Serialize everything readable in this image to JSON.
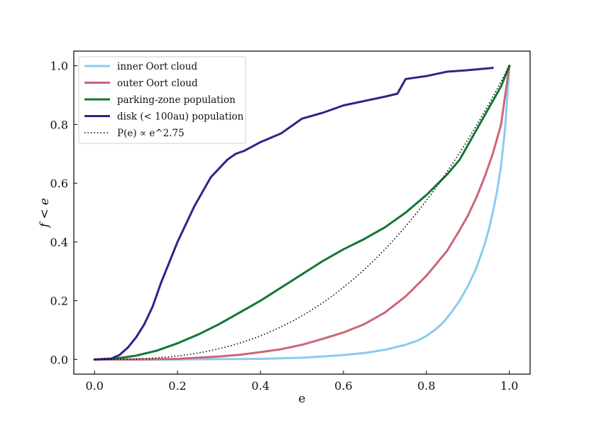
{
  "chart_data": {
    "type": "line",
    "title": "",
    "xlabel": "e",
    "ylabel": "f < e",
    "xlim": [
      -0.05,
      1.05
    ],
    "ylim": [
      -0.05,
      1.05
    ],
    "xticks": [
      0.0,
      0.2,
      0.4,
      0.6,
      0.8,
      1.0
    ],
    "yticks": [
      0.0,
      0.2,
      0.4,
      0.6,
      0.8,
      1.0
    ],
    "xtick_labels": [
      "0.0",
      "0.2",
      "0.4",
      "0.6",
      "0.8",
      "1.0"
    ],
    "ytick_labels": [
      "0.0",
      "0.2",
      "0.4",
      "0.6",
      "0.8",
      "1.0"
    ],
    "grid": false,
    "legend": {
      "placement": "top-left",
      "entries": [
        {
          "label": "inner Oort cloud",
          "color": "#88ccee",
          "style": "solid"
        },
        {
          "label": "outer Oort cloud",
          "color": "#cc6677",
          "style": "solid"
        },
        {
          "label": "parking-zone population",
          "color": "#117733",
          "style": "solid"
        },
        {
          "label": "disk (< 100au) population",
          "color": "#332288",
          "style": "solid"
        },
        {
          "label": "P(e) ∝ e^2.75",
          "color": "#000000",
          "style": "dotted"
        }
      ]
    },
    "series": [
      {
        "name": "inner Oort cloud",
        "color": "#88ccee",
        "x": [
          0,
          0.1,
          0.2,
          0.3,
          0.4,
          0.5,
          0.55,
          0.6,
          0.65,
          0.7,
          0.75,
          0.78,
          0.8,
          0.82,
          0.84,
          0.86,
          0.88,
          0.9,
          0.92,
          0.94,
          0.95,
          0.96,
          0.97,
          0.98,
          0.99,
          1.0
        ],
        "y": [
          0,
          0,
          0,
          0.001,
          0.002,
          0.006,
          0.01,
          0.015,
          0.022,
          0.033,
          0.05,
          0.065,
          0.08,
          0.1,
          0.125,
          0.16,
          0.2,
          0.25,
          0.31,
          0.39,
          0.44,
          0.5,
          0.57,
          0.66,
          0.79,
          1.0
        ]
      },
      {
        "name": "outer Oort cloud",
        "color": "#cc6677",
        "x": [
          0,
          0.1,
          0.2,
          0.3,
          0.35,
          0.4,
          0.45,
          0.5,
          0.55,
          0.6,
          0.65,
          0.7,
          0.75,
          0.8,
          0.85,
          0.88,
          0.9,
          0.92,
          0.94,
          0.96,
          0.98,
          1.0
        ],
        "y": [
          0,
          0,
          0.002,
          0.01,
          0.016,
          0.025,
          0.035,
          0.05,
          0.07,
          0.092,
          0.12,
          0.16,
          0.215,
          0.285,
          0.37,
          0.44,
          0.49,
          0.55,
          0.62,
          0.7,
          0.8,
          1.0
        ]
      },
      {
        "name": "parking-zone population",
        "color": "#117733",
        "x": [
          0,
          0.05,
          0.1,
          0.15,
          0.2,
          0.25,
          0.3,
          0.35,
          0.4,
          0.45,
          0.5,
          0.55,
          0.6,
          0.65,
          0.7,
          0.75,
          0.8,
          0.85,
          0.88,
          0.9,
          0.92,
          0.94,
          0.96,
          0.98,
          1.0
        ],
        "y": [
          0,
          0.003,
          0.013,
          0.03,
          0.055,
          0.085,
          0.12,
          0.16,
          0.2,
          0.245,
          0.29,
          0.335,
          0.375,
          0.41,
          0.45,
          0.5,
          0.56,
          0.63,
          0.68,
          0.73,
          0.78,
          0.83,
          0.88,
          0.93,
          1.0
        ]
      },
      {
        "name": "disk (< 100au) population",
        "color": "#332288",
        "x": [
          0,
          0.04,
          0.06,
          0.08,
          0.1,
          0.12,
          0.14,
          0.16,
          0.18,
          0.2,
          0.22,
          0.24,
          0.26,
          0.28,
          0.3,
          0.32,
          0.34,
          0.36,
          0.4,
          0.45,
          0.5,
          0.55,
          0.6,
          0.65,
          0.7,
          0.73,
          0.74,
          0.75,
          0.8,
          0.85,
          0.9,
          0.96
        ],
        "y": [
          0,
          0.003,
          0.015,
          0.04,
          0.075,
          0.12,
          0.18,
          0.26,
          0.33,
          0.4,
          0.46,
          0.52,
          0.57,
          0.62,
          0.65,
          0.68,
          0.7,
          0.71,
          0.74,
          0.77,
          0.82,
          0.84,
          0.865,
          0.88,
          0.895,
          0.905,
          0.93,
          0.955,
          0.965,
          0.98,
          0.985,
          0.993
        ]
      },
      {
        "name": "P(e) ∝ e^2.75",
        "color": "#000000",
        "style": "dotted",
        "function": "power",
        "exponent": 2.75
      }
    ]
  }
}
